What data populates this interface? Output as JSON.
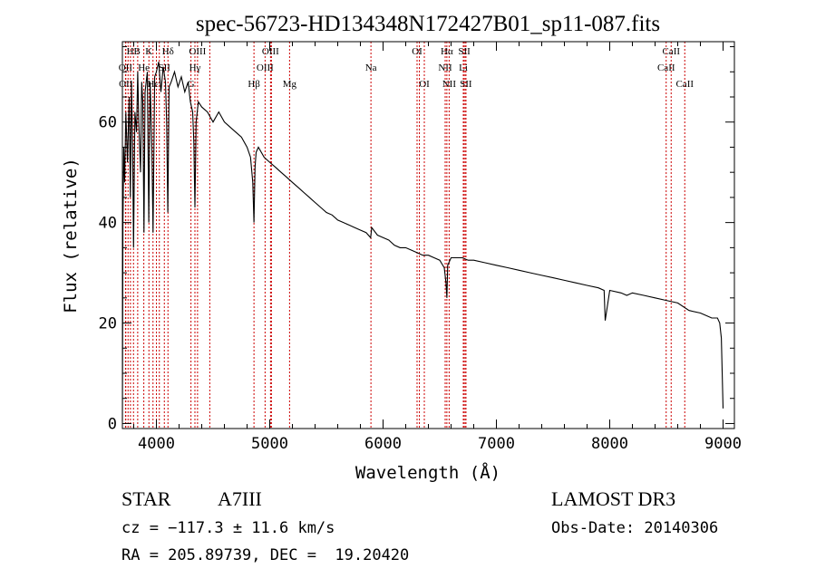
{
  "chart_data": {
    "type": "line",
    "title": "spec-56723-HD134348N172427B01_sp11-087.fits",
    "xlabel": "Wavelength (Å)",
    "ylabel": "Flux (relative)",
    "xlim": [
      3700,
      9100
    ],
    "ylim": [
      -1,
      76
    ],
    "xticks": [
      4000,
      5000,
      6000,
      7000,
      8000,
      9000
    ],
    "xtick_labels": [
      "4000",
      "5000",
      "6000",
      "7000",
      "8000",
      "9000"
    ],
    "yticks": [
      0,
      20,
      40,
      60
    ],
    "ytick_labels": [
      "0",
      "20",
      "40",
      "60"
    ],
    "series": [
      {
        "name": "flux",
        "x": [
          3700,
          3705,
          3712,
          3720,
          3730,
          3745,
          3760,
          3770,
          3780,
          3790,
          3798,
          3810,
          3825,
          3835,
          3845,
          3860,
          3870,
          3880,
          3890,
          3900,
          3920,
          3933,
          3945,
          3960,
          3970,
          3985,
          4000,
          4020,
          4040,
          4060,
          4080,
          4090,
          4101,
          4112,
          4130,
          4160,
          4190,
          4220,
          4250,
          4280,
          4300,
          4320,
          4330,
          4340,
          4350,
          4370,
          4400,
          4450,
          4500,
          4550,
          4600,
          4650,
          4700,
          4750,
          4800,
          4830,
          4850,
          4861,
          4870,
          4880,
          4900,
          4950,
          5000,
          5050,
          5100,
          5150,
          5200,
          5250,
          5300,
          5350,
          5400,
          5450,
          5500,
          5550,
          5600,
          5650,
          5700,
          5750,
          5800,
          5850,
          5890,
          5900,
          5950,
          6000,
          6050,
          6100,
          6150,
          6200,
          6250,
          6300,
          6350,
          6400,
          6450,
          6500,
          6540,
          6555,
          6563,
          6570,
          6600,
          6650,
          6700,
          6750,
          6800,
          6900,
          7000,
          7100,
          7200,
          7300,
          7400,
          7500,
          7600,
          7700,
          7800,
          7900,
          7950,
          7960,
          8000,
          8100,
          8150,
          8200,
          8300,
          8400,
          8500,
          8600,
          8700,
          8800,
          8850,
          8900,
          8950,
          8970,
          8985,
          9000
        ],
        "values": [
          0.5,
          40,
          55,
          48,
          62,
          52,
          65,
          45,
          68,
          55,
          35,
          62,
          58,
          70,
          60,
          50,
          68,
          64,
          38,
          66,
          70,
          40,
          68,
          55,
          38,
          69,
          70,
          72,
          66,
          71,
          68,
          60,
          42,
          67,
          68,
          70,
          67,
          69,
          66,
          68,
          64,
          62,
          56,
          43,
          60,
          64,
          63,
          62,
          60,
          62,
          60,
          59,
          58,
          57,
          55,
          53,
          48,
          40,
          51,
          54,
          55,
          53,
          52,
          51,
          50,
          49,
          48,
          47,
          46,
          45,
          44,
          43,
          42,
          41.5,
          40.5,
          40,
          39.5,
          39,
          38.5,
          38,
          37,
          39,
          37.5,
          37,
          36.5,
          35.5,
          35,
          35,
          34.5,
          34,
          33.5,
          33.5,
          33,
          32.5,
          31,
          28,
          25,
          31.5,
          33,
          33,
          33,
          32.5,
          32.5,
          32,
          31.5,
          31,
          30.5,
          30,
          29.5,
          29,
          28.5,
          28,
          27.5,
          27,
          26.5,
          20.5,
          26.5,
          26,
          25.5,
          26,
          25.5,
          25,
          24.5,
          24,
          22.5,
          22,
          21.5,
          21,
          21,
          20,
          17,
          3
        ]
      }
    ],
    "lines": [
      {
        "label": "HB",
        "wl": 3798,
        "row": 0
      },
      {
        "label": "K",
        "wl": 3934,
        "row": 0
      },
      {
        "label": "Hδ",
        "wl": 4102,
        "row": 0
      },
      {
        "label": "OIII",
        "wl": 4363,
        "row": 0
      },
      {
        "label": "OIII",
        "wl": 5007,
        "row": 0
      },
      {
        "label": "OI",
        "wl": 6300,
        "row": 0
      },
      {
        "label": "Hα",
        "wl": 6563,
        "row": 0
      },
      {
        "label": "SII",
        "wl": 6717,
        "row": 0
      },
      {
        "label": "CaII",
        "wl": 8542,
        "row": 0
      },
      {
        "label": "OII",
        "wl": 3727,
        "row": 1
      },
      {
        "label": "He",
        "wl": 3889,
        "row": 1
      },
      {
        "label": "SII",
        "wl": 4070,
        "row": 1
      },
      {
        "label": "Hγ",
        "wl": 4340,
        "row": 1
      },
      {
        "label": "OIII",
        "wl": 4959,
        "row": 1
      },
      {
        "label": "Na",
        "wl": 5893,
        "row": 1
      },
      {
        "label": "NII",
        "wl": 6548,
        "row": 1
      },
      {
        "label": "Li",
        "wl": 6708,
        "row": 1
      },
      {
        "label": "CaII",
        "wl": 8498,
        "row": 1
      },
      {
        "label": "OII",
        "wl": 3730,
        "row": 2
      },
      {
        "label": "Hε",
        "wl": 3970,
        "row": 2
      },
      {
        "label": "G",
        "wl": 4305,
        "row": 2
      },
      {
        "label": "Hβ",
        "wl": 4861,
        "row": 2
      },
      {
        "label": "Mg",
        "wl": 5175,
        "row": 2
      },
      {
        "label": "OI",
        "wl": 6364,
        "row": 2
      },
      {
        "label": "NII",
        "wl": 6583,
        "row": 2
      },
      {
        "label": "SII",
        "wl": 6731,
        "row": 2
      },
      {
        "label": "CaII",
        "wl": 8662,
        "row": 2
      }
    ],
    "extra_line_markers": [
      3750,
      3771,
      3835,
      4000,
      4026,
      4471,
      5015,
      6320,
      6730
    ]
  },
  "info": {
    "object_class": "STAR",
    "subclass": "A7III",
    "survey": "LAMOST DR3",
    "redshift_text": "cz = −117.3 ± 11.6 km/s",
    "obs_date_text": "Obs-Date: 20140306",
    "coords_text": "RA = 205.89739, DEC =  19.20420"
  },
  "colors": {
    "axis": "#000000",
    "spectrum": "#000000",
    "line_marker": "#cc0000",
    "background": "#ffffff"
  }
}
